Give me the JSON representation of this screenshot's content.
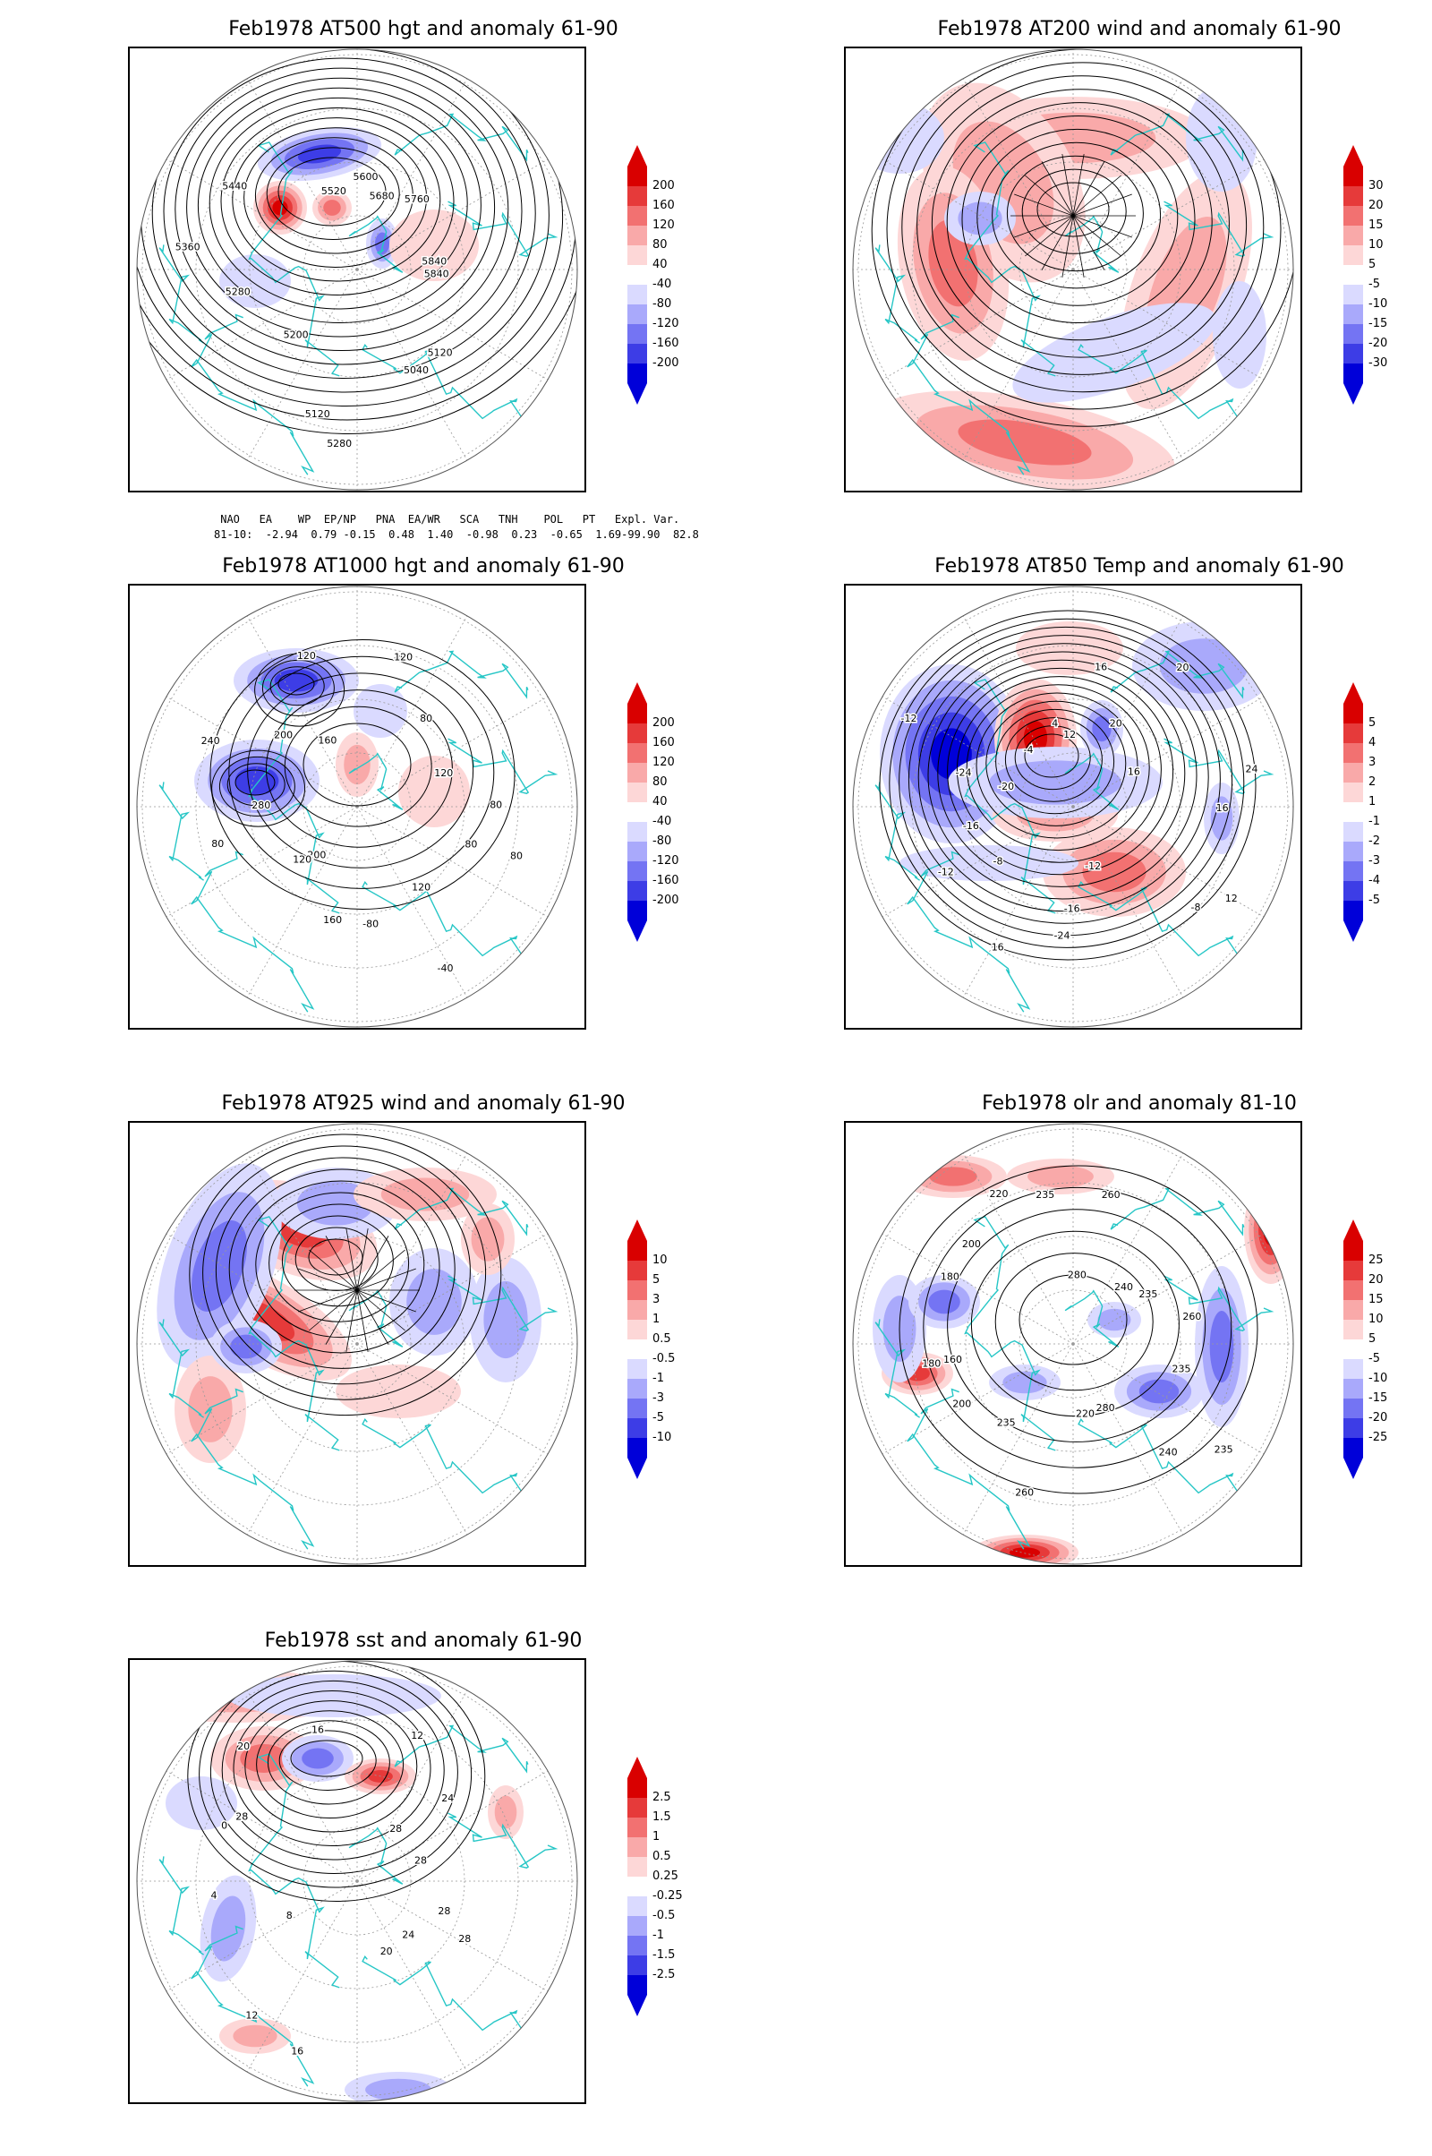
{
  "panels": [
    {
      "id": "z500",
      "title": "Feb1978 AT500 hgt and anomaly 61-90",
      "colorbar": [
        "200",
        "160",
        "120",
        "80",
        "40",
        "-40",
        "-80",
        "-120",
        "-160",
        "-200"
      ],
      "contour_labels": [
        "5840",
        "5120",
        "5040",
        "5280",
        "5120",
        "5200",
        "5280",
        "5360",
        "5440",
        "5520",
        "5600",
        "5680",
        "5760",
        "5840"
      ]
    },
    {
      "id": "u200",
      "title": "Feb1978 AT200 wind and anomaly 61-90",
      "colorbar": [
        "30",
        "20",
        "15",
        "10",
        "5",
        "-5",
        "-10",
        "-15",
        "-20",
        "-30"
      ],
      "contour_labels": []
    },
    {
      "id": "z1000",
      "title": "Feb1978 AT1000 hgt and anomaly 61-90",
      "colorbar": [
        "200",
        "160",
        "120",
        "80",
        "40",
        "-40",
        "-80",
        "-120",
        "-160",
        "-200"
      ],
      "contour_labels": [
        "80",
        "80",
        "120",
        "-40",
        "-80",
        "160",
        "200",
        "120",
        "80",
        "280",
        "240",
        "200",
        "160",
        "120",
        "-40",
        "120",
        "80",
        "120",
        "80"
      ]
    },
    {
      "id": "t850",
      "title": "Feb1978 AT850 Temp and anomaly 61-90",
      "colorbar": [
        "5",
        "4",
        "3",
        "2",
        "1",
        "-1",
        "-2",
        "-3",
        "-4",
        "-5"
      ],
      "contour_labels": [
        "16",
        "12",
        "-8",
        "-12",
        "-16",
        "-24",
        "16",
        "-8",
        "-12",
        "-16",
        "-20",
        "-24",
        "-12",
        "-4",
        "4",
        "12",
        "16",
        "20",
        "20",
        "16",
        "24"
      ]
    },
    {
      "id": "w925",
      "title": "Feb1978 AT925 wind and anomaly 61-90",
      "colorbar": [
        "10",
        "5",
        "3",
        "1",
        "0.5",
        "-0.5",
        "-1",
        "-3",
        "-5",
        "-10"
      ],
      "contour_labels": []
    },
    {
      "id": "olr",
      "title": "Feb1978 olr and anomaly 81-10",
      "colorbar": [
        "25",
        "20",
        "15",
        "10",
        "5",
        "-5",
        "-10",
        "-15",
        "-20",
        "-25"
      ],
      "contour_labels": [
        "235",
        "235",
        "240",
        "280",
        "220",
        "260",
        "235",
        "200",
        "180",
        "160",
        "180",
        "200",
        "220",
        "235",
        "280",
        "260",
        "240",
        "235",
        "260"
      ]
    },
    {
      "id": "sst",
      "title": "Feb1978 sst and anomaly 61-90",
      "colorbar": [
        "2.5",
        "1.5",
        "1",
        "0.5",
        "0.25",
        "-0.25",
        "-0.5",
        "-1",
        "-1.5",
        "-2.5"
      ],
      "contour_labels": [
        "28",
        "28",
        "24",
        "20",
        "16",
        "12",
        "8",
        "4",
        "0",
        "28",
        "20",
        "16",
        "12",
        "28",
        "24",
        "28"
      ]
    }
  ],
  "indices": {
    "header": " NAO   EA    WP  EP/NP   PNA  EA/WR   SCA   TNH    POL   PT   Expl. Var.",
    "row": "81-10:  -2.94  0.79 -0.15  0.48  1.40  -0.98  0.23  -0.65  1.69-99.90  82.8"
  },
  "colors": {
    "pos": [
      "#ffffff",
      "#fdd7d7",
      "#f9a9a9",
      "#f27171",
      "#e63a3a",
      "#d90000"
    ],
    "neg": [
      "#ffffff",
      "#dadaff",
      "#a9a9fb",
      "#7474f3",
      "#3d3de6",
      "#0000d9"
    ],
    "coast": "#26c6c6",
    "contour": "#000000"
  }
}
